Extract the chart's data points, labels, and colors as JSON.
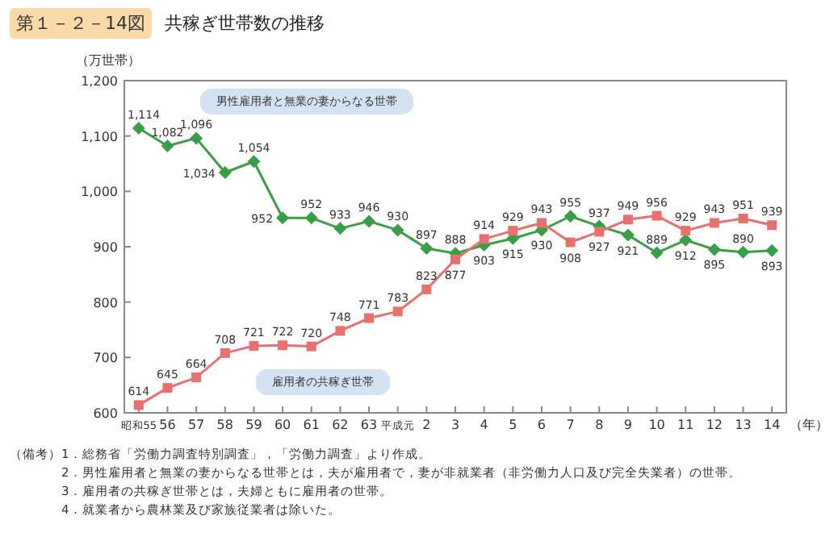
{
  "chart_data": {
    "type": "line",
    "title": "共稼ぎ世帯数の推移",
    "ylabel": "（万世帯）",
    "xlabel": "（年）",
    "categories": [
      "昭和55",
      "56",
      "57",
      "58",
      "59",
      "60",
      "61",
      "62",
      "63",
      "平成元",
      "2",
      "3",
      "4",
      "5",
      "6",
      "7",
      "8",
      "9",
      "10",
      "11",
      "12",
      "13",
      "14"
    ],
    "series": [
      {
        "name": "男性雇用者と無業の妻からなる世帯",
        "color": "#3a9e48",
        "marker": "diamond",
        "values": [
          1114,
          1082,
          1096,
          1034,
          1054,
          952,
          952,
          933,
          946,
          930,
          897,
          888,
          903,
          915,
          930,
          955,
          937,
          921,
          889,
          912,
          895,
          890,
          893
        ],
        "value_labels": [
          "1,114",
          "1,082",
          "1,096",
          "1,034",
          "1,054",
          "952",
          "952",
          "933",
          "946",
          "930",
          "897",
          "888",
          "903",
          "915",
          "930",
          "955",
          "937",
          "921",
          "889",
          "912",
          "895",
          "890",
          "893"
        ]
      },
      {
        "name": "雇用者の共稼ぎ世帯",
        "color": "#e8706f",
        "marker": "square",
        "values": [
          614,
          645,
          664,
          708,
          721,
          722,
          720,
          748,
          771,
          783,
          823,
          877,
          914,
          929,
          943,
          908,
          927,
          949,
          956,
          929,
          943,
          951,
          939
        ]
      }
    ],
    "ylim": [
      600,
      1200
    ],
    "yticks": [
      {
        "value": 600,
        "label": "600"
      },
      {
        "value": 700,
        "label": "700"
      },
      {
        "value": 800,
        "label": "800"
      },
      {
        "value": 900,
        "label": "900"
      },
      {
        "value": 1000,
        "label": "1,000"
      },
      {
        "value": 1100,
        "label": "1,100"
      },
      {
        "value": 1200,
        "label": "1,200"
      }
    ],
    "data_labels": true,
    "grid": false,
    "line_style": "solid",
    "annotations": [
      "第１－２－14図",
      "（備考）",
      "1．総務省「労働力調査特別調査」，「労働力調査」より作成。",
      "2．男性雇用者と無業の妻からなる世帯とは，夫が雇用者で，妻が非就業者（非労働力人口及び完全失業者）の世帯。",
      "3．雇用者の共稼ぎ世帯とは，夫婦ともに雇用者の世帯。",
      "4．就業者から農林業及び家族従業者は除いた。"
    ]
  }
}
